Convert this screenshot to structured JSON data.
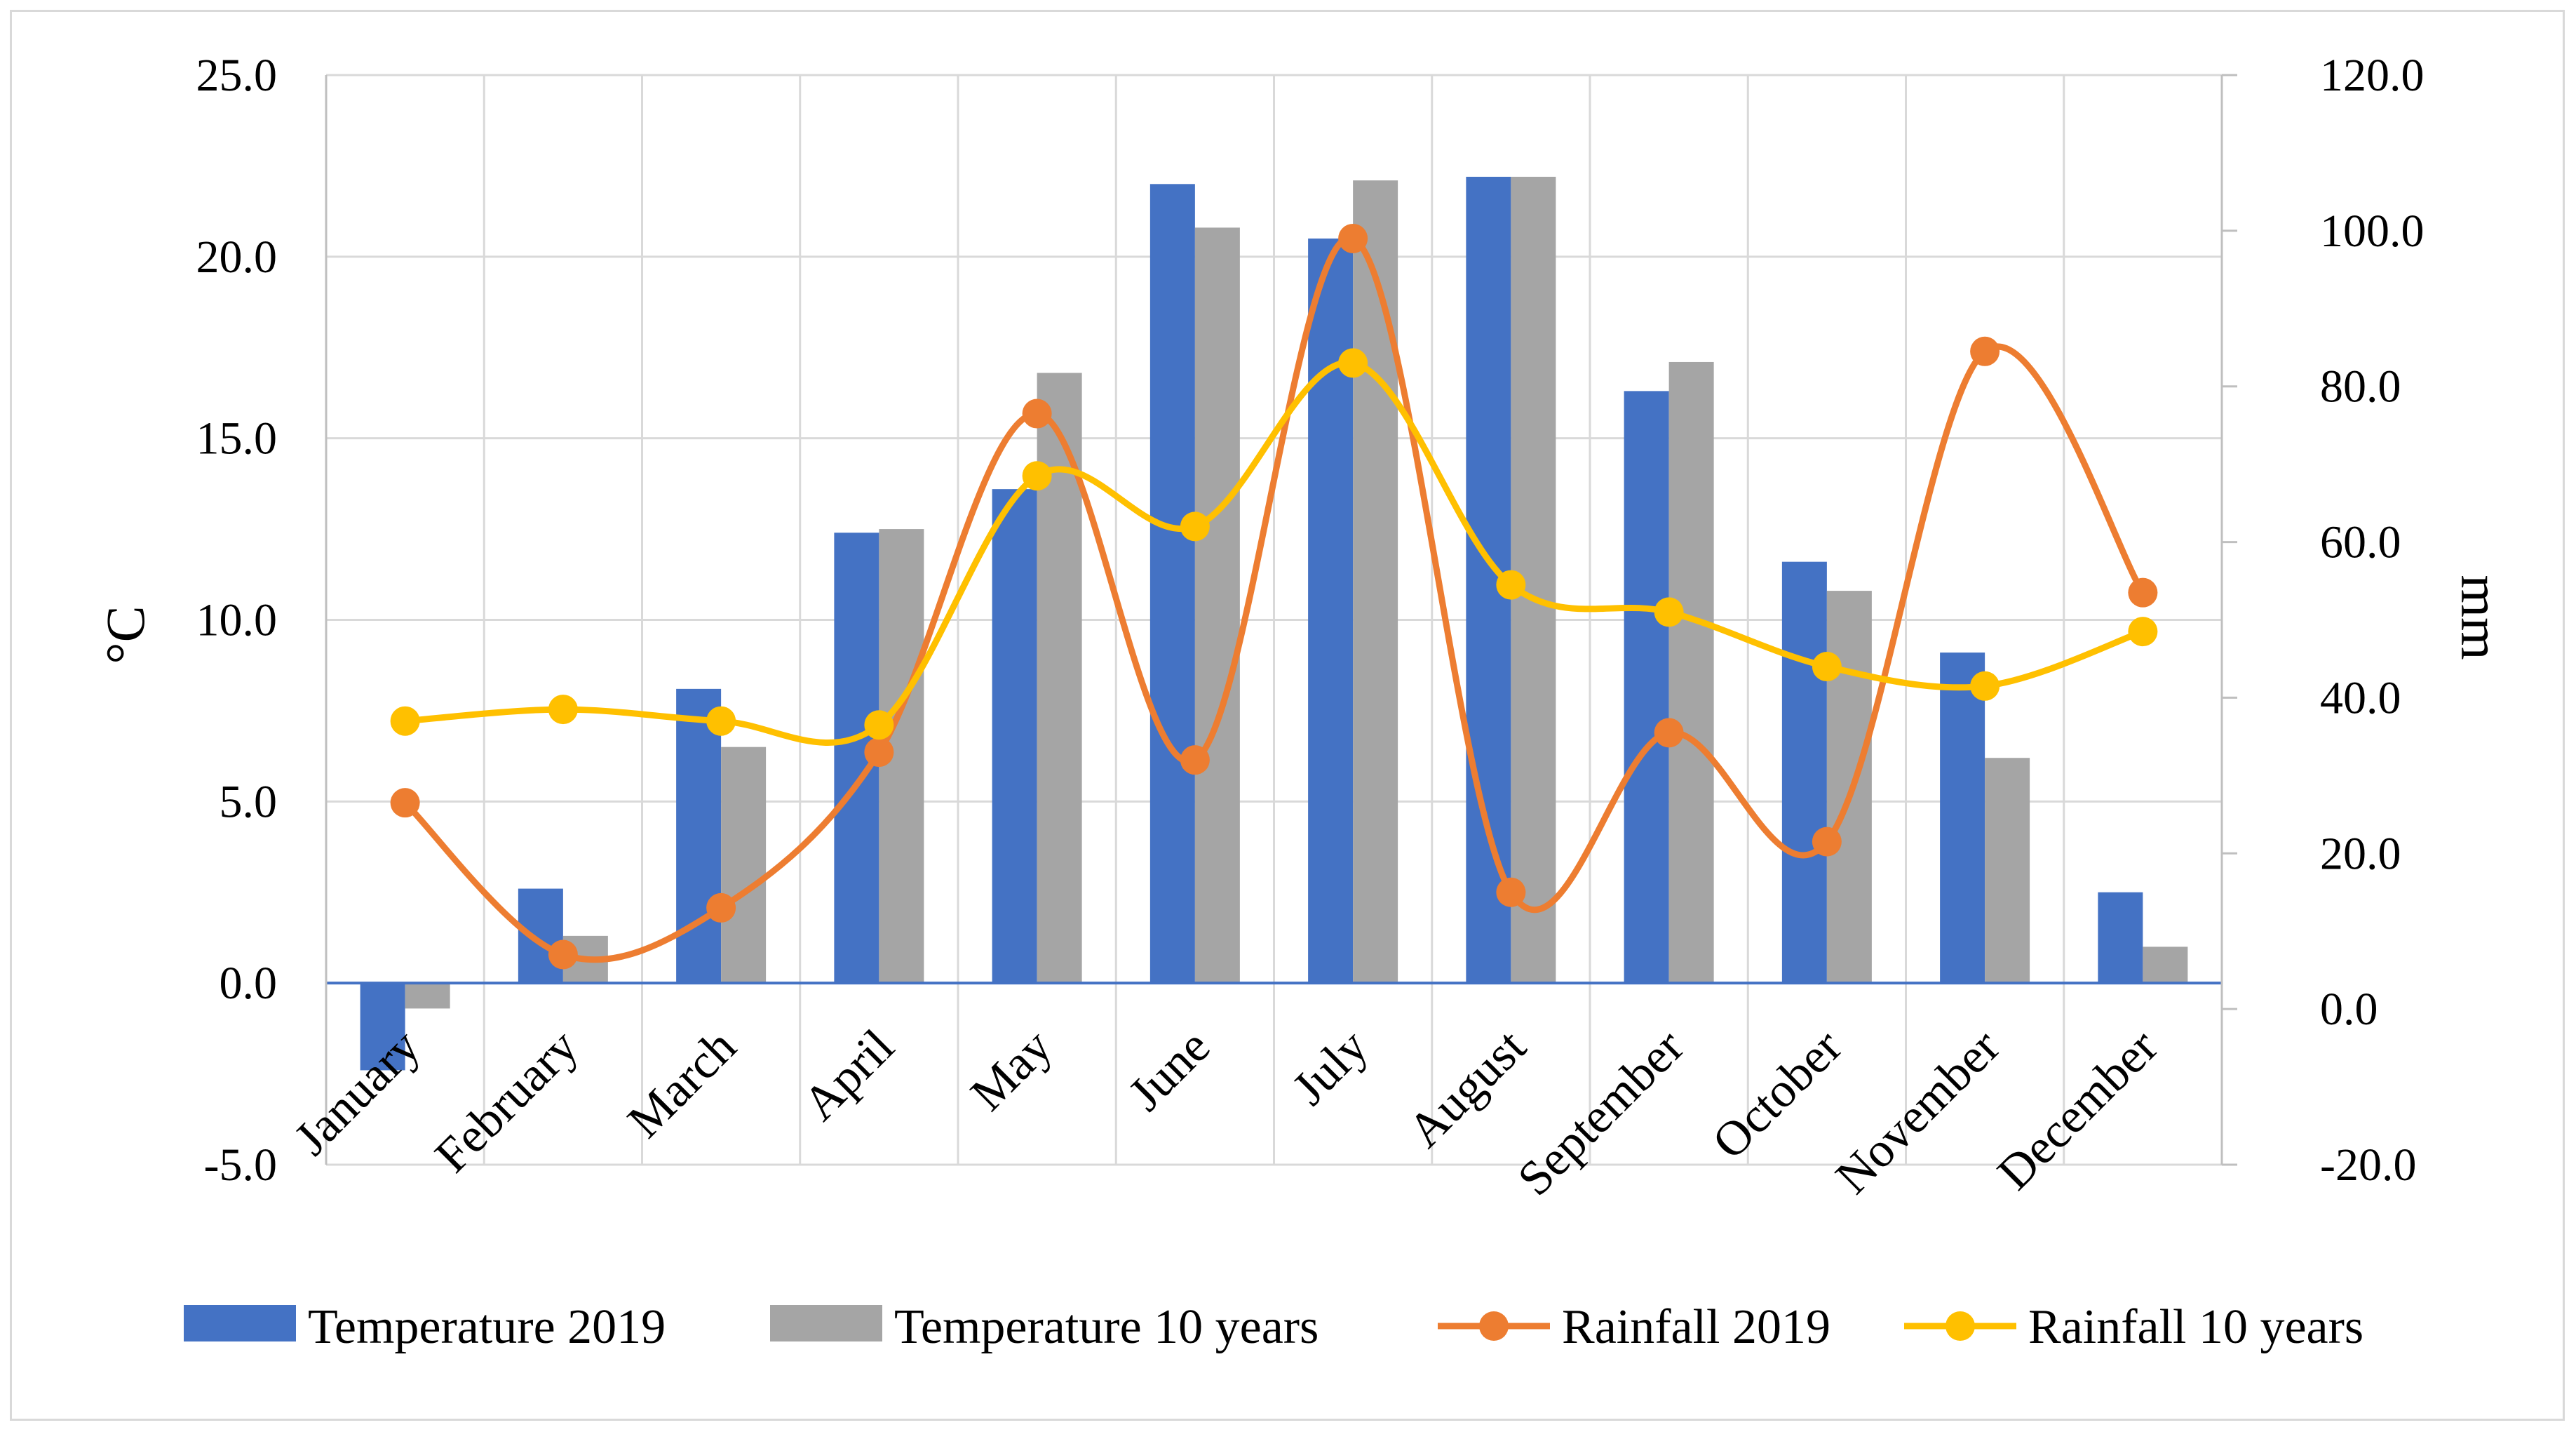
{
  "chart_data": {
    "type": "bar+line",
    "title": "",
    "categories": [
      "January",
      "February",
      "March",
      "April",
      "May",
      "June",
      "July",
      "August",
      "September",
      "October",
      "November",
      "December"
    ],
    "left_axis": {
      "label": "°C",
      "ylim": [
        -5,
        25
      ],
      "ticks": [
        -5,
        0,
        5,
        10,
        15,
        20,
        25
      ],
      "tick_labels": [
        "-5.0",
        "0.0",
        "5.0",
        "10.0",
        "15.0",
        "20.0",
        "25.0"
      ]
    },
    "right_axis": {
      "label": "mm",
      "ylim": [
        -20,
        120
      ],
      "ticks": [
        -20,
        0,
        20,
        40,
        60,
        80,
        100,
        120
      ],
      "tick_labels": [
        "-20.0",
        "0.0",
        "20.0",
        "40.0",
        "60.0",
        "80.0",
        "100.0",
        "120.0"
      ]
    },
    "series": [
      {
        "name": "Temperature 2019",
        "kind": "bar",
        "axis": "left",
        "color": "#4472c4",
        "values": [
          -2.4,
          2.6,
          8.1,
          12.4,
          13.6,
          22.0,
          20.5,
          22.2,
          16.3,
          11.6,
          9.1,
          2.5
        ]
      },
      {
        "name": "Temperature 10 years",
        "kind": "bar",
        "axis": "left",
        "color": "#a5a5a5",
        "values": [
          -0.7,
          1.3,
          6.5,
          12.5,
          16.8,
          20.8,
          22.1,
          22.2,
          17.1,
          10.8,
          6.2,
          1.0
        ]
      },
      {
        "name": "Rainfall 2019",
        "kind": "line",
        "axis": "right",
        "color": "#ed7d31",
        "values": [
          26.5,
          7.0,
          13.0,
          33.0,
          76.5,
          32.0,
          99.0,
          15.0,
          35.5,
          21.5,
          84.5,
          53.5
        ]
      },
      {
        "name": "Rainfall 10 years",
        "kind": "line",
        "axis": "right",
        "color": "#ffc000",
        "values": [
          37.0,
          38.5,
          37.0,
          36.5,
          68.5,
          62.0,
          83.0,
          54.5,
          51.0,
          44.0,
          41.5,
          48.5
        ]
      }
    ],
    "legend_position": "bottom",
    "grid": true
  }
}
